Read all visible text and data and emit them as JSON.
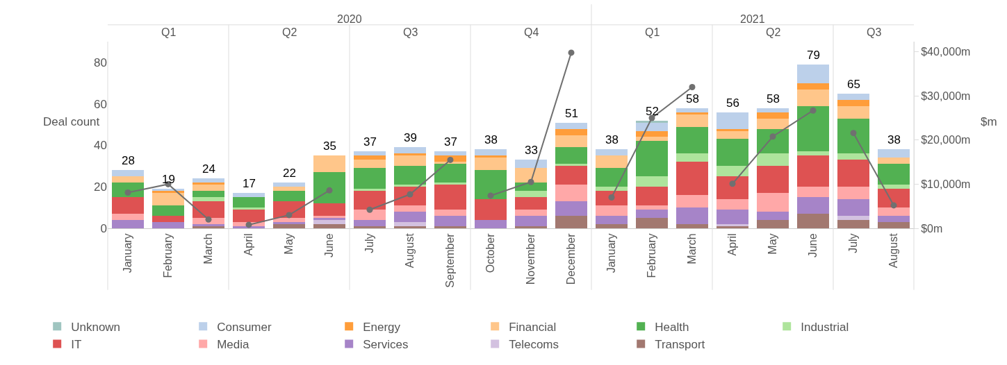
{
  "chart_data": {
    "type": "bar",
    "stacked": true,
    "ylabel": "Deal count",
    "y2label": "$m",
    "categories": [
      "January",
      "February",
      "March",
      "April",
      "May",
      "June",
      "July",
      "August",
      "September",
      "October",
      "November",
      "December",
      "January",
      "February",
      "March",
      "April",
      "May",
      "June",
      "July",
      "August"
    ],
    "series": [
      {
        "name": "Transport",
        "color": "#a27870",
        "values": [
          0,
          0,
          1,
          0,
          2,
          2,
          1,
          1,
          1,
          0,
          1,
          6,
          2,
          5,
          2,
          1,
          4,
          7,
          4,
          3
        ]
      },
      {
        "name": "Telecoms",
        "color": "#d3c1e0",
        "values": [
          0,
          0,
          0,
          0,
          0,
          2,
          0,
          2,
          0,
          0,
          0,
          0,
          0,
          0,
          0,
          1,
          0,
          0,
          2,
          0
        ]
      },
      {
        "name": "Services",
        "color": "#a684c8",
        "values": [
          4,
          3,
          1,
          1,
          1,
          1,
          3,
          5,
          5,
          4,
          5,
          7,
          4,
          4,
          8,
          7,
          4,
          8,
          8,
          3
        ]
      },
      {
        "name": "Media",
        "color": "#ffa8a8",
        "values": [
          3,
          0,
          3,
          2,
          2,
          1,
          5,
          3,
          3,
          0,
          3,
          8,
          5,
          2,
          6,
          5,
          9,
          5,
          6,
          4
        ]
      },
      {
        "name": "IT",
        "color": "#de5252",
        "values": [
          8,
          3,
          8,
          6,
          8,
          6,
          9,
          9,
          12,
          10,
          6,
          9,
          7,
          9,
          16,
          11,
          13,
          15,
          13,
          9
        ]
      },
      {
        "name": "Industrial",
        "color": "#aee49c",
        "values": [
          0,
          0,
          2,
          1,
          0,
          0,
          1,
          1,
          1,
          0,
          3,
          1,
          2,
          5,
          4,
          5,
          6,
          2,
          3,
          2
        ]
      },
      {
        "name": "Health",
        "color": "#52b152",
        "values": [
          7,
          5,
          3,
          5,
          5,
          15,
          10,
          9,
          9,
          14,
          4,
          8,
          9,
          17,
          13,
          13,
          12,
          22,
          17,
          10
        ]
      },
      {
        "name": "Financial",
        "color": "#ffc68a",
        "values": [
          3,
          6,
          3,
          0,
          2,
          8,
          4,
          5,
          1,
          6,
          7,
          6,
          6,
          2,
          6,
          4,
          5,
          8,
          6,
          3
        ]
      },
      {
        "name": "Energy",
        "color": "#ff9d3a",
        "values": [
          0,
          1,
          1,
          0,
          0,
          0,
          2,
          1,
          3,
          1,
          0,
          3,
          0,
          3,
          1,
          1,
          3,
          3,
          3,
          0
        ]
      },
      {
        "name": "Consumer",
        "color": "#bcd0ea",
        "values": [
          3,
          1,
          2,
          2,
          2,
          0,
          2,
          3,
          2,
          3,
          4,
          3,
          3,
          4,
          2,
          8,
          2,
          9,
          3,
          4
        ]
      },
      {
        "name": "Unknown",
        "color": "#9fc5c0",
        "values": [
          0,
          0,
          0,
          0,
          0,
          0,
          0,
          0,
          0,
          0,
          0,
          0,
          0,
          1,
          0,
          0,
          0,
          0,
          0,
          0
        ]
      },
      {
        "type": "line",
        "axis": "y2",
        "color": "#707070",
        "values": [
          8100,
          10000,
          2000,
          null,
          null,
          null,
          null,
          null,
          null,
          null,
          null,
          null,
          null,
          null,
          null,
          null,
          null,
          null,
          null,
          null
        ]
      },
      {
        "type": "line",
        "axis": "y2",
        "color": "#707070",
        "values": [
          null,
          null,
          null,
          800,
          3000,
          8600,
          null,
          null,
          null,
          null,
          null,
          null,
          null,
          null,
          null,
          null,
          null,
          null,
          null,
          null
        ]
      },
      {
        "type": "line",
        "axis": "y2",
        "color": "#707070",
        "values": [
          null,
          null,
          null,
          null,
          null,
          null,
          4200,
          7700,
          15500,
          null,
          null,
          null,
          null,
          null,
          null,
          null,
          null,
          null,
          null,
          null
        ]
      },
      {
        "type": "line",
        "axis": "y2",
        "color": "#707070",
        "values": [
          null,
          null,
          null,
          null,
          null,
          null,
          null,
          null,
          null,
          7400,
          10500,
          39800,
          null,
          null,
          null,
          null,
          null,
          null,
          null,
          null
        ]
      },
      {
        "type": "line",
        "axis": "y2",
        "color": "#707070",
        "values": [
          null,
          null,
          null,
          null,
          null,
          null,
          null,
          null,
          null,
          null,
          null,
          null,
          7000,
          25000,
          32000,
          null,
          null,
          null,
          null,
          null
        ]
      },
      {
        "type": "line",
        "axis": "y2",
        "color": "#707070",
        "values": [
          null,
          null,
          null,
          null,
          null,
          null,
          null,
          null,
          null,
          null,
          null,
          null,
          null,
          null,
          null,
          10100,
          20800,
          26700,
          null,
          null
        ]
      },
      {
        "type": "line",
        "axis": "y2",
        "color": "#707070",
        "values": [
          null,
          null,
          null,
          null,
          null,
          null,
          null,
          null,
          null,
          null,
          null,
          null,
          null,
          null,
          null,
          null,
          null,
          null,
          21600,
          5200
        ]
      }
    ],
    "totals": [
      "28",
      "19",
      "24",
      "17",
      "22",
      "35",
      "37",
      "39",
      "37",
      "38",
      "33",
      "51",
      "38",
      "52",
      "58",
      "56",
      "58",
      "79",
      "65",
      "38"
    ],
    "ylim": [
      0,
      90
    ],
    "yticks": [
      0,
      20,
      40,
      60,
      80
    ],
    "y2lim": [
      0,
      42300
    ],
    "y2ticks": [
      {
        "value": 0,
        "label": "$0m"
      },
      {
        "value": 10000,
        "label": "$10,000m"
      },
      {
        "value": 20000,
        "label": "$20,000m"
      },
      {
        "value": 30000,
        "label": "$30,000m"
      },
      {
        "value": 40000,
        "label": "$40,000m"
      }
    ],
    "marker": "circle",
    "line_style": "solid",
    "legend": "bottom",
    "annotations": [
      "2020",
      "2021",
      "Q1",
      "Q2",
      "Q3",
      "Q4",
      "Q1",
      "Q2",
      "Q3"
    ]
  }
}
